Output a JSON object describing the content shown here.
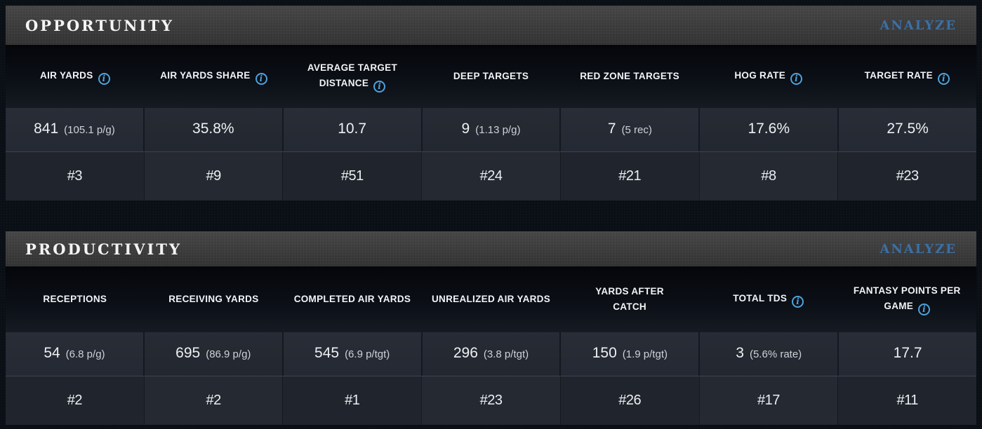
{
  "theme": {
    "analyze_color": "#3d6fa3",
    "info_icon_color": "#4da3dc",
    "title_bar_color": "#3b3b3b",
    "page_background": "#0a0e15"
  },
  "panels": [
    {
      "title": "OPPORTUNITY",
      "analyze_label": "ANALYZE",
      "columns": [
        {
          "label": "AIR YARDS",
          "has_info": true,
          "value": "841",
          "note": "(105.1 p/g)",
          "rank": "#3"
        },
        {
          "label": "AIR YARDS SHARE",
          "has_info": true,
          "value": "35.8%",
          "note": "",
          "rank": "#9"
        },
        {
          "label": "AVERAGE TARGET DISTANCE",
          "has_info": true,
          "value": "10.7",
          "note": "",
          "rank": "#51"
        },
        {
          "label": "DEEP TARGETS",
          "has_info": false,
          "value": "9",
          "note": "(1.13 p/g)",
          "rank": "#24"
        },
        {
          "label": "RED ZONE TARGETS",
          "has_info": false,
          "value": "7",
          "note": "(5 rec)",
          "rank": "#21"
        },
        {
          "label": "HOG RATE",
          "has_info": true,
          "value": "17.6%",
          "note": "",
          "rank": "#8"
        },
        {
          "label": "TARGET RATE",
          "has_info": true,
          "value": "27.5%",
          "note": "",
          "rank": "#23"
        }
      ]
    },
    {
      "title": "PRODUCTIVITY",
      "analyze_label": "ANALYZE",
      "columns": [
        {
          "label": "RECEPTIONS",
          "has_info": false,
          "value": "54",
          "note": "(6.8 p/g)",
          "rank": "#2"
        },
        {
          "label": "RECEIVING YARDS",
          "has_info": false,
          "value": "695",
          "note": "(86.9 p/g)",
          "rank": "#2"
        },
        {
          "label": "COMPLETED AIR YARDS",
          "has_info": false,
          "value": "545",
          "note": "(6.9 p/tgt)",
          "rank": "#1"
        },
        {
          "label": "UNREALIZED AIR YARDS",
          "has_info": false,
          "value": "296",
          "note": "(3.8 p/tgt)",
          "rank": "#23"
        },
        {
          "label": "YARDS AFTER CATCH",
          "has_info": false,
          "value": "150",
          "note": "(1.9 p/tgt)",
          "rank": "#26"
        },
        {
          "label": "TOTAL TDS",
          "has_info": true,
          "value": "3",
          "note": "(5.6% rate)",
          "rank": "#17"
        },
        {
          "label": "FANTASY POINTS PER GAME",
          "has_info": true,
          "value": "17.7",
          "note": "",
          "rank": "#11"
        }
      ]
    }
  ]
}
